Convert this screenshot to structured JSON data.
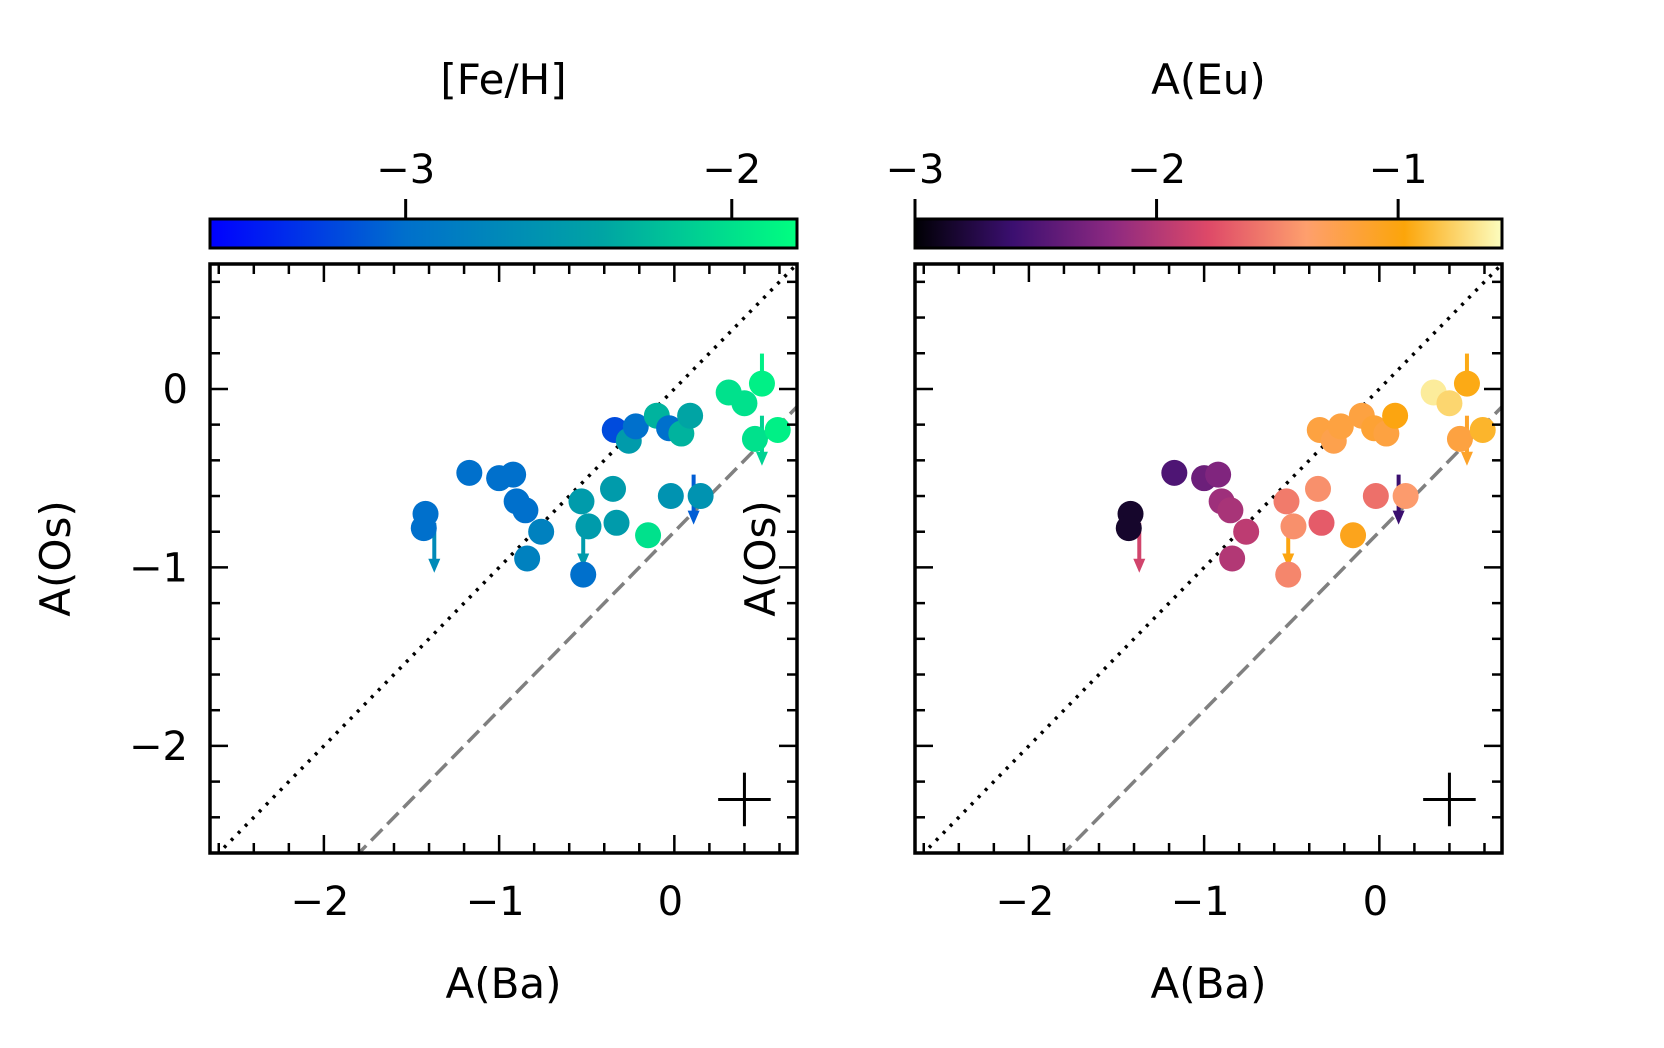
{
  "chart_data": [
    {
      "type": "scatter",
      "title": "",
      "xlabel": "A(Ba)",
      "ylabel": "A(Os)",
      "xlim": [
        -2.65,
        0.7
      ],
      "ylim": [
        -2.6,
        0.7
      ],
      "xticks": [
        "−2",
        "−1",
        "0"
      ],
      "xtick_values": [
        -2,
        -1,
        0
      ],
      "yticks": [
        "0",
        "−1",
        "−2"
      ],
      "ytick_values": [
        0,
        -1,
        -2
      ],
      "colorbar": {
        "label": "[Fe/H]",
        "position": "top",
        "range": [
          -3.6,
          -1.8
        ],
        "ticks": [
          "−3",
          "−2"
        ],
        "tick_values": [
          -3,
          -2
        ],
        "colormap": [
          "#0000ff",
          "#0070cc",
          "#00a4a4",
          "#00ff80"
        ]
      },
      "reference_lines": [
        {
          "style": "dotted",
          "color": "#000000",
          "slope": 1,
          "intercept": 0
        },
        {
          "style": "dashed",
          "color": "#808080",
          "slope": 1,
          "intercept": -0.8
        }
      ],
      "error_cross": {
        "x": 0.4,
        "y": -2.3,
        "dx": 0.15,
        "dy": 0.15
      },
      "points": [
        {
          "x": -1.42,
          "y": -0.7,
          "c": -3.0
        },
        {
          "x": -1.43,
          "y": -0.78,
          "c": -3.0
        },
        {
          "x": -1.17,
          "y": -0.47,
          "c": -3.0
        },
        {
          "x": -1.0,
          "y": -0.5,
          "c": -3.0
        },
        {
          "x": -0.92,
          "y": -0.48,
          "c": -3.0
        },
        {
          "x": -0.9,
          "y": -0.63,
          "c": -3.0
        },
        {
          "x": -0.85,
          "y": -0.68,
          "c": -3.0
        },
        {
          "x": -0.76,
          "y": -0.8,
          "c": -2.8
        },
        {
          "x": -0.84,
          "y": -0.95,
          "c": -2.8
        },
        {
          "x": -0.53,
          "y": -0.63,
          "c": -2.5
        },
        {
          "x": -0.49,
          "y": -0.77,
          "c": -2.5
        },
        {
          "x": -0.52,
          "y": -1.04,
          "c": -3.0
        },
        {
          "x": -0.35,
          "y": -0.56,
          "c": -2.5
        },
        {
          "x": -0.33,
          "y": -0.75,
          "c": -2.5
        },
        {
          "x": -0.15,
          "y": -0.82,
          "c": -2.0
        },
        {
          "x": -0.34,
          "y": -0.23,
          "c": -3.2
        },
        {
          "x": -0.26,
          "y": -0.29,
          "c": -2.5
        },
        {
          "x": -0.22,
          "y": -0.21,
          "c": -3.0
        },
        {
          "x": -0.1,
          "y": -0.15,
          "c": -2.3
        },
        {
          "x": -0.03,
          "y": -0.22,
          "c": -3.0
        },
        {
          "x": 0.04,
          "y": -0.25,
          "c": -2.3
        },
        {
          "x": 0.09,
          "y": -0.15,
          "c": -2.4
        },
        {
          "x": -0.02,
          "y": -0.6,
          "c": -2.6
        },
        {
          "x": 0.15,
          "y": -0.6,
          "c": -2.6
        },
        {
          "x": 0.31,
          "y": -0.02,
          "c": -2.0
        },
        {
          "x": 0.4,
          "y": -0.08,
          "c": -2.0
        },
        {
          "x": 0.46,
          "y": -0.28,
          "c": -2.0
        },
        {
          "x": 0.59,
          "y": -0.23,
          "c": -1.9
        }
      ],
      "upper_limits": [
        {
          "x": -1.37,
          "y": -0.75,
          "c": -2.7
        },
        {
          "x": -0.52,
          "y": -0.72,
          "c": -2.5
        },
        {
          "x": 0.11,
          "y": -0.48,
          "c": -3.1
        },
        {
          "x": 0.5,
          "y": -0.15,
          "c": -2.1
        }
      ],
      "upper_limit_markers": [
        {
          "x": 0.5,
          "y": 0.03,
          "c": -1.9
        }
      ]
    },
    {
      "type": "scatter",
      "title": "",
      "xlabel": "A(Ba)",
      "ylabel": "A(Os)",
      "xlim": [
        -2.65,
        0.7
      ],
      "ylim": [
        -2.6,
        0.7
      ],
      "xticks": [
        "−2",
        "−1",
        "0"
      ],
      "xtick_values": [
        -2,
        -1,
        0
      ],
      "yticks": [],
      "ytick_values": [
        0,
        -1,
        -2
      ],
      "colorbar": {
        "label": "A(Eu)",
        "position": "top",
        "range": [
          -3.0,
          -0.57
        ],
        "ticks": [
          "−3",
          "−2",
          "−1"
        ],
        "tick_values": [
          -3,
          -2,
          -1
        ],
        "colormap": [
          "#000004",
          "#3b0f70",
          "#8c2981",
          "#de4968",
          "#fe9f6d",
          "#fca50a",
          "#fcfdbf"
        ]
      },
      "reference_lines": [
        {
          "style": "dotted",
          "color": "#000000",
          "slope": 1,
          "intercept": 0
        },
        {
          "style": "dashed",
          "color": "#808080",
          "slope": 1,
          "intercept": -0.8
        }
      ],
      "error_cross": {
        "x": 0.4,
        "y": -2.3,
        "dx": 0.15,
        "dy": 0.15
      },
      "points": [
        {
          "x": -1.42,
          "y": -0.7,
          "c": -2.85
        },
        {
          "x": -1.43,
          "y": -0.78,
          "c": -2.85
        },
        {
          "x": -1.17,
          "y": -0.47,
          "c": -2.5
        },
        {
          "x": -1.0,
          "y": -0.5,
          "c": -2.35
        },
        {
          "x": -0.92,
          "y": -0.48,
          "c": -2.25
        },
        {
          "x": -0.9,
          "y": -0.63,
          "c": -2.1
        },
        {
          "x": -0.85,
          "y": -0.68,
          "c": -2.05
        },
        {
          "x": -0.76,
          "y": -0.8,
          "c": -1.95
        },
        {
          "x": -0.84,
          "y": -0.95,
          "c": -2.0
        },
        {
          "x": -0.53,
          "y": -0.63,
          "c": -1.55
        },
        {
          "x": -0.49,
          "y": -0.77,
          "c": -1.45
        },
        {
          "x": -0.52,
          "y": -1.04,
          "c": -1.5
        },
        {
          "x": -0.35,
          "y": -0.56,
          "c": -1.45
        },
        {
          "x": -0.33,
          "y": -0.75,
          "c": -1.7
        },
        {
          "x": -0.15,
          "y": -0.82,
          "c": -1.05
        },
        {
          "x": -0.34,
          "y": -0.23,
          "c": -1.2
        },
        {
          "x": -0.26,
          "y": -0.29,
          "c": -1.25
        },
        {
          "x": -0.22,
          "y": -0.21,
          "c": -1.2
        },
        {
          "x": -0.1,
          "y": -0.15,
          "c": -1.2
        },
        {
          "x": -0.03,
          "y": -0.22,
          "c": -1.15
        },
        {
          "x": 0.04,
          "y": -0.25,
          "c": -1.2
        },
        {
          "x": 0.09,
          "y": -0.15,
          "c": -1.0
        },
        {
          "x": -0.02,
          "y": -0.6,
          "c": -1.6
        },
        {
          "x": 0.15,
          "y": -0.6,
          "c": -1.4
        },
        {
          "x": 0.31,
          "y": -0.02,
          "c": -0.65
        },
        {
          "x": 0.4,
          "y": -0.08,
          "c": -0.75
        },
        {
          "x": 0.46,
          "y": -0.28,
          "c": -1.2
        },
        {
          "x": 0.59,
          "y": -0.23,
          "c": -0.9
        }
      ],
      "upper_limits": [
        {
          "x": -1.37,
          "y": -0.75,
          "c": -1.85
        },
        {
          "x": -0.52,
          "y": -0.72,
          "c": -1.0
        },
        {
          "x": 0.11,
          "y": -0.48,
          "c": -2.6
        },
        {
          "x": 0.5,
          "y": -0.15,
          "c": -1.1
        }
      ],
      "upper_limit_markers": [
        {
          "x": 0.5,
          "y": 0.03,
          "c": -0.95
        }
      ]
    }
  ]
}
